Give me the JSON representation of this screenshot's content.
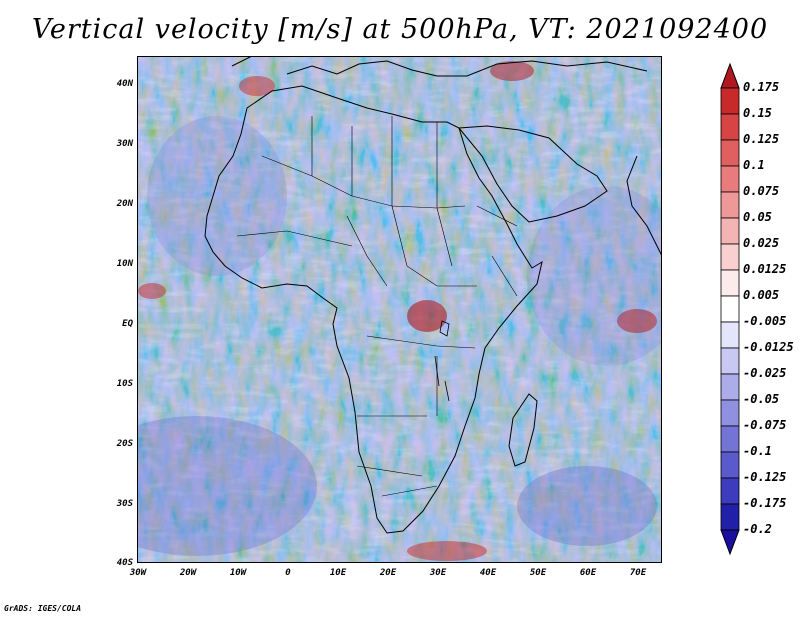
{
  "title": "Vertical velocity [m/s] at 500hPa, VT: 2021092400",
  "credit": "GrADS: IGES/COLA",
  "map": {
    "region": "Africa",
    "variable": "Vertical velocity",
    "units": "m/s",
    "level": "500hPa",
    "valid_time": "2021092400",
    "lat_labels": [
      "40N",
      "30N",
      "20N",
      "10N",
      "EQ",
      "10S",
      "20S",
      "30S",
      "40S"
    ],
    "lon_labels": [
      "30W",
      "20W",
      "10W",
      "0",
      "10E",
      "20E",
      "30E",
      "40E",
      "50E",
      "60E",
      "70E"
    ]
  },
  "colorbar": {
    "labels": [
      "0.175",
      "0.15",
      "0.125",
      "0.1",
      "0.075",
      "0.05",
      "0.025",
      "0.0125",
      "0.005",
      "-0.005",
      "-0.0125",
      "-0.025",
      "-0.05",
      "-0.075",
      "-0.1",
      "-0.125",
      "-0.175",
      "-0.2"
    ],
    "colors": [
      "#b0171f",
      "#c82a2a",
      "#d64444",
      "#e06060",
      "#e87c7c",
      "#ef9898",
      "#f4b4b4",
      "#f8d0d0",
      "#fcebeb",
      "#ffffff",
      "#e4e4fa",
      "#c8c8f2",
      "#acacea",
      "#9090e0",
      "#7474d6",
      "#5a5acc",
      "#3c3cbc",
      "#2020a8",
      "#1a0ea0"
    ]
  }
}
